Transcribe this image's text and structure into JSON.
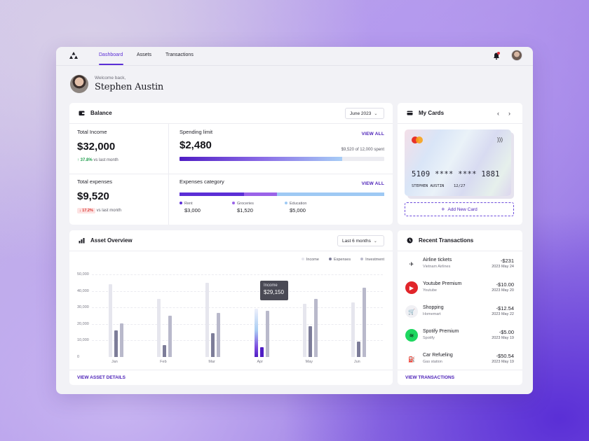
{
  "nav": {
    "tabs": [
      {
        "label": "Dashboard",
        "active": true
      },
      {
        "label": "Assets",
        "active": false
      },
      {
        "label": "Transactions",
        "active": false
      }
    ]
  },
  "welcome": {
    "greeting": "Welcome back,",
    "name": "Stephen Austin"
  },
  "balance": {
    "title": "Balance",
    "period": "June 2023",
    "total_income": {
      "label": "Total Income",
      "value": "$32,000",
      "change": "37.8%",
      "change_suffix": "vs last month"
    },
    "total_expenses": {
      "label": "Total expenses",
      "value": "$9,520",
      "change": "17.2%",
      "change_suffix": "vs last month"
    },
    "spending_limit": {
      "label": "Spending limit",
      "value": "$2,480",
      "view_all": "VIEW ALL",
      "spent_text": "$9,520 of 12,000 spent",
      "progress": 0.793
    },
    "expenses_category": {
      "label": "Expenses category",
      "view_all": "VIEW ALL",
      "items": [
        {
          "name": "Rent",
          "amount": "$3,000",
          "color": "#5b2ed6"
        },
        {
          "name": "Groceries",
          "amount": "$1,520",
          "color": "#9a63e8"
        },
        {
          "name": "Education",
          "amount": "$5,000",
          "color": "#9ec9f4"
        }
      ]
    }
  },
  "my_cards": {
    "title": "My Cards",
    "card_number": "5109 **** **** 1881",
    "holder": "STEPHEN AUSTIN",
    "expiry": "12/27",
    "add_label": "Add New Card"
  },
  "asset_overview": {
    "title": "Asset Overview",
    "period": "Last 6 months",
    "footer_link": "VIEW ASSET DETAILS",
    "tooltip": {
      "label": "Income",
      "value": "$29,150"
    },
    "colors": {
      "income": "#e6e6ee",
      "expenses": "#7d7d99",
      "investment": "#b9b9cb"
    }
  },
  "chart_data": {
    "type": "bar",
    "categories": [
      "Jan",
      "Feb",
      "Mar",
      "Apr",
      "May",
      "Jun"
    ],
    "series": [
      {
        "name": "Income",
        "values": [
          44000,
          35000,
          45000,
          29150,
          32000,
          33000
        ]
      },
      {
        "name": "Expenses",
        "values": [
          16000,
          7000,
          14500,
          6000,
          18500,
          9500
        ]
      },
      {
        "name": "Investment",
        "values": [
          20500,
          25000,
          26500,
          28000,
          35000,
          42000
        ]
      }
    ],
    "yticks": [
      "50,000",
      "40,000",
      "30,000",
      "20,000",
      "10,000",
      "0"
    ],
    "ylim": [
      0,
      50000
    ],
    "legend_position": "top-right"
  },
  "recent_transactions": {
    "title": "Recent Transactions",
    "footer_link": "VIEW TRANSACTIONS",
    "items": [
      {
        "name": "Airline tickets",
        "merchant": "Vietnam Airlines",
        "amount": "-$231",
        "date": "2023 May 24",
        "icon": "airplane-icon"
      },
      {
        "name": "Youtube Premium",
        "merchant": "Youtube",
        "amount": "-$10.00",
        "date": "2023 May 20",
        "icon": "youtube-icon"
      },
      {
        "name": "Shopping",
        "merchant": "Homemart",
        "amount": "-$12.54",
        "date": "2023 May 22",
        "icon": "basket-icon"
      },
      {
        "name": "Spotify Premium",
        "merchant": "Spotify",
        "amount": "-$5.00",
        "date": "2023 May 19",
        "icon": "spotify-icon"
      },
      {
        "name": "Car Refueling",
        "merchant": "Gas station",
        "amount": "-$50.54",
        "date": "2023 May 19",
        "icon": "fuel-icon"
      }
    ]
  }
}
